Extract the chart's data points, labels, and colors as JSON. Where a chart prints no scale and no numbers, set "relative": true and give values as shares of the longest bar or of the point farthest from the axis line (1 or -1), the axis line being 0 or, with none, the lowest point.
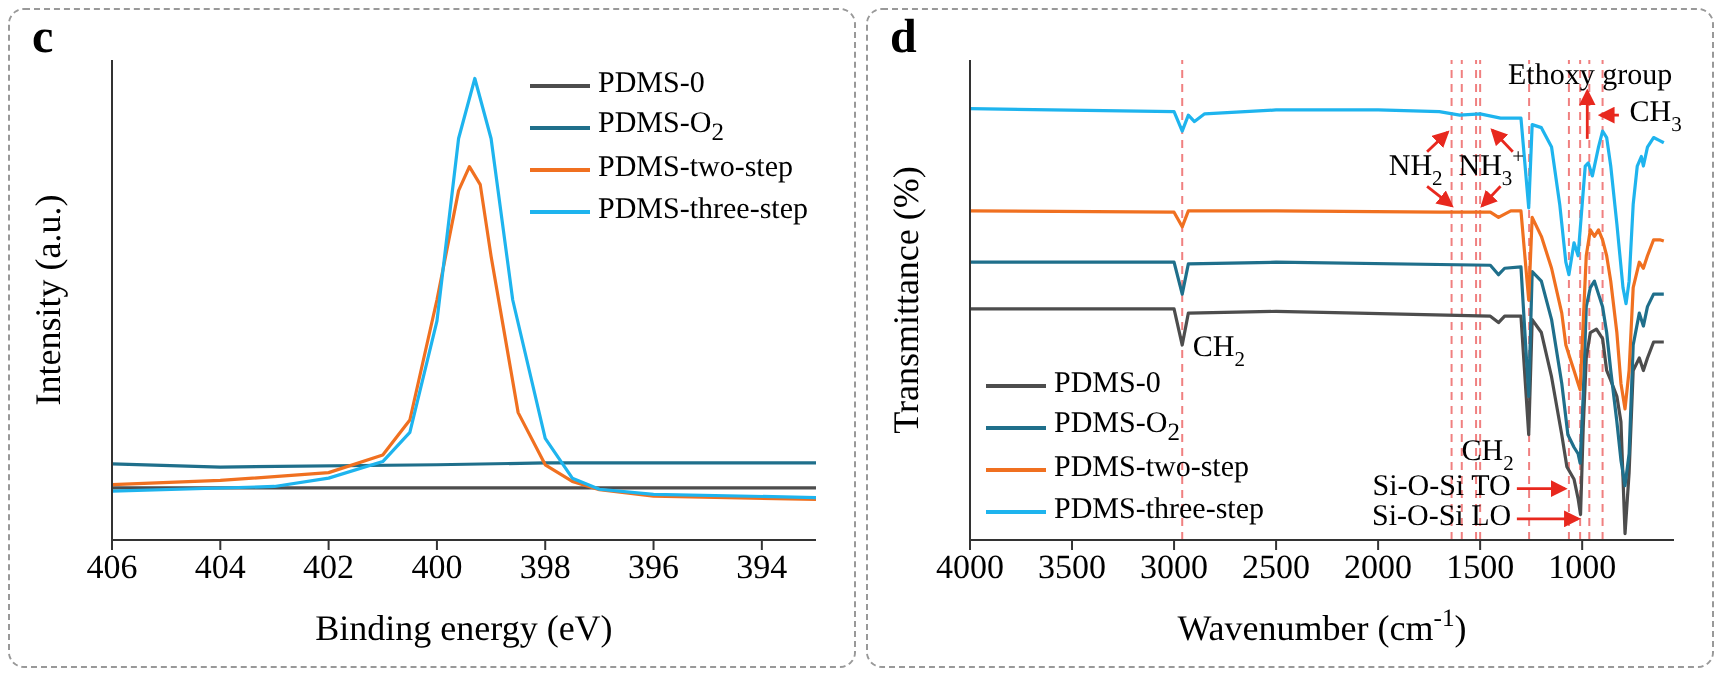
{
  "chart_data": [
    {
      "type": "line",
      "title": "c",
      "xlabel": "Binding energy (eV)",
      "ylabel": "Intensity (a.u.)",
      "relative": true,
      "xlim": [
        406,
        393
      ],
      "xticks": [
        406,
        404,
        402,
        400,
        398,
        396,
        394
      ],
      "legend": "top right",
      "marker": "none",
      "line_style": "solid",
      "series": [
        {
          "name": "PDMS-0",
          "color": "#4d4d4d",
          "x": [
            406,
            393
          ],
          "values": [
            0.113,
            0.113
          ]
        },
        {
          "name": "PDMS-O$_{2}$",
          "color": "#1f6f8b",
          "x": [
            406,
            404,
            400,
            398,
            393
          ],
          "values": [
            0.165,
            0.158,
            0.163,
            0.167,
            0.167
          ]
        },
        {
          "name": "PDMS-two-step",
          "color": "#f07020",
          "x": [
            406,
            404,
            402,
            401,
            400.5,
            400,
            399.6,
            399.4,
            399.2,
            399,
            398.5,
            398,
            397.5,
            397,
            396,
            393
          ],
          "values": [
            0.12,
            0.129,
            0.146,
            0.184,
            0.26,
            0.52,
            0.757,
            0.809,
            0.77,
            0.615,
            0.276,
            0.163,
            0.127,
            0.109,
            0.095,
            0.088
          ]
        },
        {
          "name": "PDMS-three-step",
          "color": "#1eb4ee",
          "x": [
            406,
            403,
            402,
            401,
            400.5,
            400,
            399.6,
            399.3,
            399,
            398.6,
            398,
            397.5,
            397,
            396,
            393
          ],
          "values": [
            0.106,
            0.116,
            0.134,
            0.17,
            0.233,
            0.474,
            0.87,
            1.0,
            0.87,
            0.52,
            0.22,
            0.134,
            0.11,
            0.099,
            0.092
          ]
        }
      ]
    },
    {
      "type": "line",
      "title": "d",
      "xlabel": "Wavenumber (cm$^{-1}$)",
      "ylabel": "Transmittance (%)",
      "relative": true,
      "xlim": [
        4000,
        550
      ],
      "xticks": [
        4000,
        3500,
        3000,
        2500,
        2000,
        1500,
        1000
      ],
      "legend": "bottom left",
      "marker": "none",
      "line_style": "solid",
      "series": [
        {
          "name": "PDMS-0",
          "color": "#4d4d4d",
          "x": [
            4000,
            3000,
            2960,
            2930,
            2500,
            2100,
            1450,
            1410,
            1380,
            1300,
            1262,
            1245,
            1200,
            1150,
            1100,
            1075,
            1040,
            1020,
            1008,
            995,
            980,
            960,
            930,
            900,
            880,
            860,
            830,
            810,
            790,
            770,
            750,
            720,
            700,
            680,
            650,
            620,
            600
          ],
          "values": [
            0.536,
            0.536,
            0.452,
            0.526,
            0.53,
            0.526,
            0.519,
            0.504,
            0.519,
            0.519,
            0.244,
            0.511,
            0.481,
            0.378,
            0.244,
            0.17,
            0.141,
            0.096,
            0.059,
            0.259,
            0.422,
            0.481,
            0.489,
            0.467,
            0.393,
            0.37,
            0.333,
            0.274,
            0.015,
            0.156,
            0.393,
            0.422,
            0.393,
            0.422,
            0.459,
            0.459,
            0.459
          ]
        },
        {
          "name": "PDMS-O$_{2}$",
          "color": "#1f6f8b",
          "x": [
            4000,
            3000,
            2960,
            2930,
            2500,
            1450,
            1410,
            1380,
            1300,
            1262,
            1245,
            1200,
            1150,
            1100,
            1070,
            1040,
            1020,
            1010,
            995,
            980,
            960,
            940,
            920,
            900,
            880,
            860,
            830,
            810,
            790,
            770,
            750,
            720,
            700,
            680,
            650,
            620,
            600
          ],
          "values": [
            0.644,
            0.644,
            0.57,
            0.64,
            0.644,
            0.637,
            0.615,
            0.63,
            0.633,
            0.333,
            0.622,
            0.6,
            0.511,
            0.363,
            0.244,
            0.215,
            0.2,
            0.178,
            0.333,
            0.541,
            0.585,
            0.6,
            0.57,
            0.541,
            0.481,
            0.393,
            0.274,
            0.185,
            0.126,
            0.2,
            0.452,
            0.526,
            0.496,
            0.541,
            0.57,
            0.57,
            0.57
          ]
        },
        {
          "name": "PDMS-two-step",
          "color": "#f07020",
          "x": [
            4000,
            3000,
            2960,
            2930,
            2500,
            1700,
            1450,
            1410,
            1350,
            1300,
            1262,
            1245,
            1200,
            1150,
            1100,
            1080,
            1060,
            1040,
            1020,
            1010,
            1000,
            980,
            960,
            940,
            920,
            900,
            880,
            860,
            830,
            810,
            790,
            770,
            750,
            720,
            700,
            680,
            650,
            620,
            600
          ],
          "values": [
            0.763,
            0.76,
            0.726,
            0.763,
            0.763,
            0.76,
            0.76,
            0.748,
            0.763,
            0.763,
            0.556,
            0.748,
            0.704,
            0.63,
            0.526,
            0.452,
            0.422,
            0.393,
            0.363,
            0.348,
            0.452,
            0.659,
            0.719,
            0.704,
            0.719,
            0.696,
            0.659,
            0.6,
            0.481,
            0.363,
            0.304,
            0.393,
            0.585,
            0.644,
            0.63,
            0.659,
            0.696,
            0.696,
            0.693
          ]
        },
        {
          "name": "PDMS-three-step",
          "color": "#1eb4ee",
          "x": [
            4000,
            3000,
            2960,
            2930,
            2900,
            2850,
            2500,
            2000,
            1700,
            1600,
            1500,
            1400,
            1300,
            1262,
            1245,
            1200,
            1150,
            1110,
            1080,
            1065,
            1040,
            1020,
            1000,
            985,
            970,
            950,
            920,
            900,
            880,
            860,
            830,
            800,
            785,
            770,
            750,
            730,
            710,
            700,
            680,
            650,
            620,
            600
          ],
          "values": [
            1.0,
            0.993,
            0.948,
            0.985,
            0.97,
            0.988,
            0.997,
            0.997,
            0.993,
            0.985,
            0.988,
            0.978,
            0.978,
            0.77,
            0.963,
            0.956,
            0.911,
            0.778,
            0.644,
            0.615,
            0.689,
            0.659,
            0.778,
            0.867,
            0.874,
            0.844,
            0.911,
            0.948,
            0.933,
            0.867,
            0.733,
            0.585,
            0.548,
            0.6,
            0.778,
            0.867,
            0.889,
            0.867,
            0.911,
            0.933,
            0.926,
            0.921
          ]
        }
      ],
      "ref_lines": [
        {
          "axis": "x",
          "value": 2960,
          "color": "#f08080",
          "line_style": "dashed"
        },
        {
          "axis": "x",
          "value": 1640,
          "color": "#f08080",
          "line_style": "dashed"
        },
        {
          "axis": "x",
          "value": 1590,
          "color": "#f08080",
          "line_style": "dashed"
        },
        {
          "axis": "x",
          "value": 1520,
          "color": "#f08080",
          "line_style": "dashed"
        },
        {
          "axis": "x",
          "value": 1500,
          "color": "#f08080",
          "line_style": "dashed"
        },
        {
          "axis": "x",
          "value": 1260,
          "color": "#f08080",
          "line_style": "dashed"
        },
        {
          "axis": "x",
          "value": 1065,
          "color": "#f08080",
          "line_style": "dashed"
        },
        {
          "axis": "x",
          "value": 1010,
          "color": "#f08080",
          "line_style": "dashed"
        },
        {
          "axis": "x",
          "value": 965,
          "color": "#f08080",
          "line_style": "dashed"
        },
        {
          "axis": "x",
          "value": 900,
          "color": "#f08080",
          "line_style": "dashed"
        }
      ],
      "annotations": [
        "CH$_{2}$",
        "NH$_{2}$",
        "NH$_{3}$$^{+}$",
        "Ethoxy group",
        "CH$_{3}$",
        "CH$_{2}$",
        "Si-O-Si TO",
        "Si-O-Si LO"
      ]
    }
  ]
}
